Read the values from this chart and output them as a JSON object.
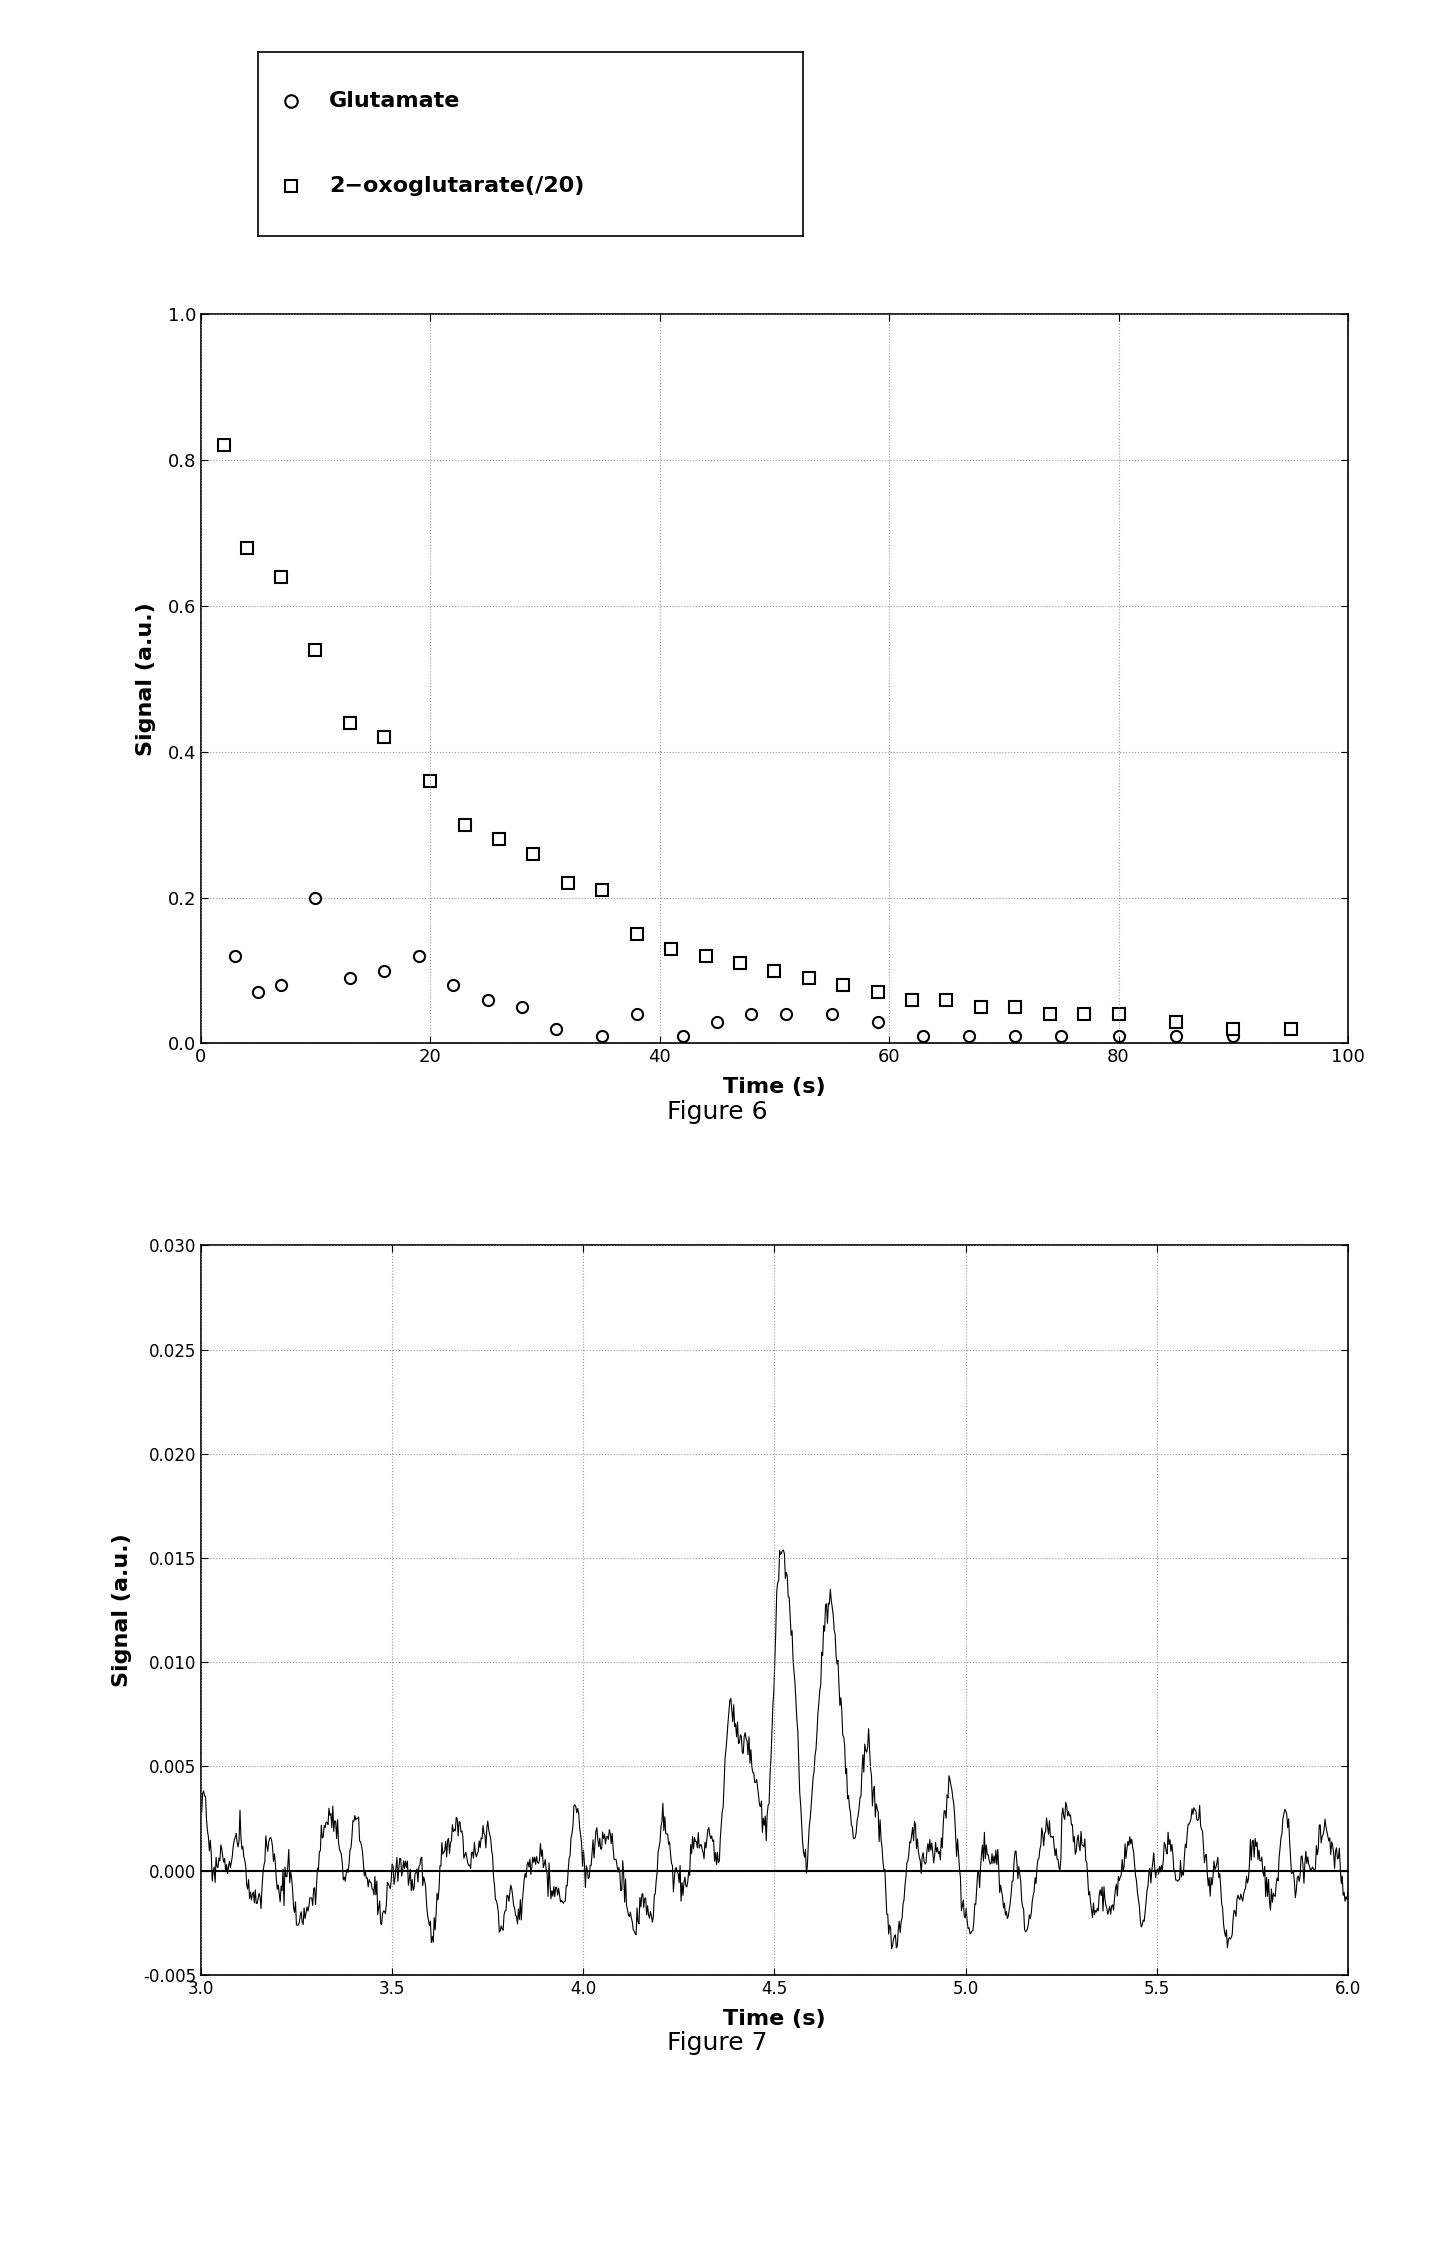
{
  "fig6": {
    "xlabel": "Time (s)",
    "ylabel": "Signal (a.u.)",
    "xlim": [
      0,
      100
    ],
    "ylim": [
      0.0,
      1.0
    ],
    "xticks": [
      0,
      20,
      40,
      60,
      80,
      100
    ],
    "yticks": [
      0.0,
      0.2,
      0.4,
      0.6,
      0.8,
      1.0
    ],
    "glutamate_x": [
      3,
      5,
      7,
      10,
      13,
      16,
      19,
      22,
      25,
      28,
      31,
      35,
      38,
      42,
      45,
      48,
      51,
      55,
      59,
      63,
      67,
      71,
      75,
      80,
      85,
      90
    ],
    "glutamate_y": [
      0.12,
      0.07,
      0.08,
      0.2,
      0.09,
      0.1,
      0.12,
      0.08,
      0.06,
      0.05,
      0.02,
      0.01,
      0.04,
      0.01,
      0.03,
      0.04,
      0.04,
      0.04,
      0.03,
      0.01,
      0.01,
      0.01,
      0.01,
      0.01,
      0.01,
      0.01
    ],
    "oxoglutarate_x": [
      2,
      4,
      7,
      10,
      13,
      16,
      20,
      23,
      26,
      29,
      32,
      35,
      38,
      41,
      44,
      47,
      50,
      53,
      56,
      59,
      62,
      65,
      68,
      71,
      74,
      77,
      80,
      85,
      90,
      95
    ],
    "oxoglutarate_y": [
      0.82,
      0.68,
      0.64,
      0.54,
      0.44,
      0.42,
      0.36,
      0.3,
      0.28,
      0.26,
      0.22,
      0.21,
      0.15,
      0.13,
      0.12,
      0.11,
      0.1,
      0.09,
      0.08,
      0.07,
      0.06,
      0.06,
      0.05,
      0.05,
      0.04,
      0.04,
      0.04,
      0.03,
      0.02,
      0.02
    ],
    "caption": "Figure 6"
  },
  "fig7": {
    "xlabel": "Time (s)",
    "ylabel": "Signal (a.u.)",
    "xlim": [
      3.0,
      6.0
    ],
    "ylim": [
      -0.005,
      0.03
    ],
    "xticks": [
      3.0,
      3.5,
      4.0,
      4.5,
      5.0,
      5.5,
      6.0
    ],
    "yticks": [
      -0.005,
      0.0,
      0.005,
      0.01,
      0.015,
      0.02,
      0.025,
      0.03
    ],
    "caption": "Figure 7"
  },
  "legend_labels": [
    "Glutamate",
    "2−oxoglutarate(/20)"
  ]
}
